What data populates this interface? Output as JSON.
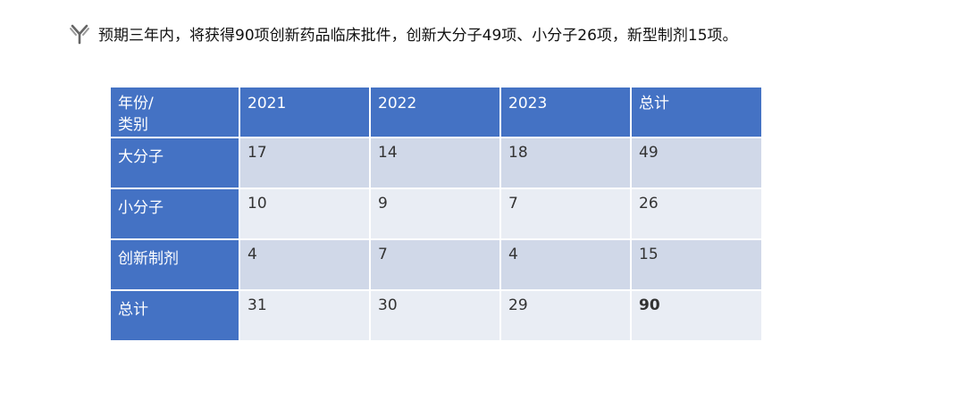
{
  "headline": {
    "text": "预期三年内，将获得90项创新药品临床批件，创新大分子49项、小分子26项，新型制剂15项。"
  },
  "table": {
    "corner_line1": "年份/",
    "corner_line2": "类别",
    "columns": [
      "2021",
      "2022",
      "2023",
      "总计"
    ],
    "rows": [
      {
        "label": "大分子",
        "values": [
          "17",
          "14",
          "18",
          "49"
        ]
      },
      {
        "label": "小分子",
        "values": [
          "10",
          "9",
          "7",
          "26"
        ]
      },
      {
        "label": "创新制剂",
        "values": [
          "4",
          "7",
          "4",
          "15"
        ]
      },
      {
        "label": "总计",
        "values": [
          "31",
          "30",
          "29",
          "90"
        ]
      }
    ]
  },
  "colors": {
    "header_blue": "#4472c4",
    "row_dark": "#d0d8e8",
    "row_light": "#e9edf4"
  }
}
